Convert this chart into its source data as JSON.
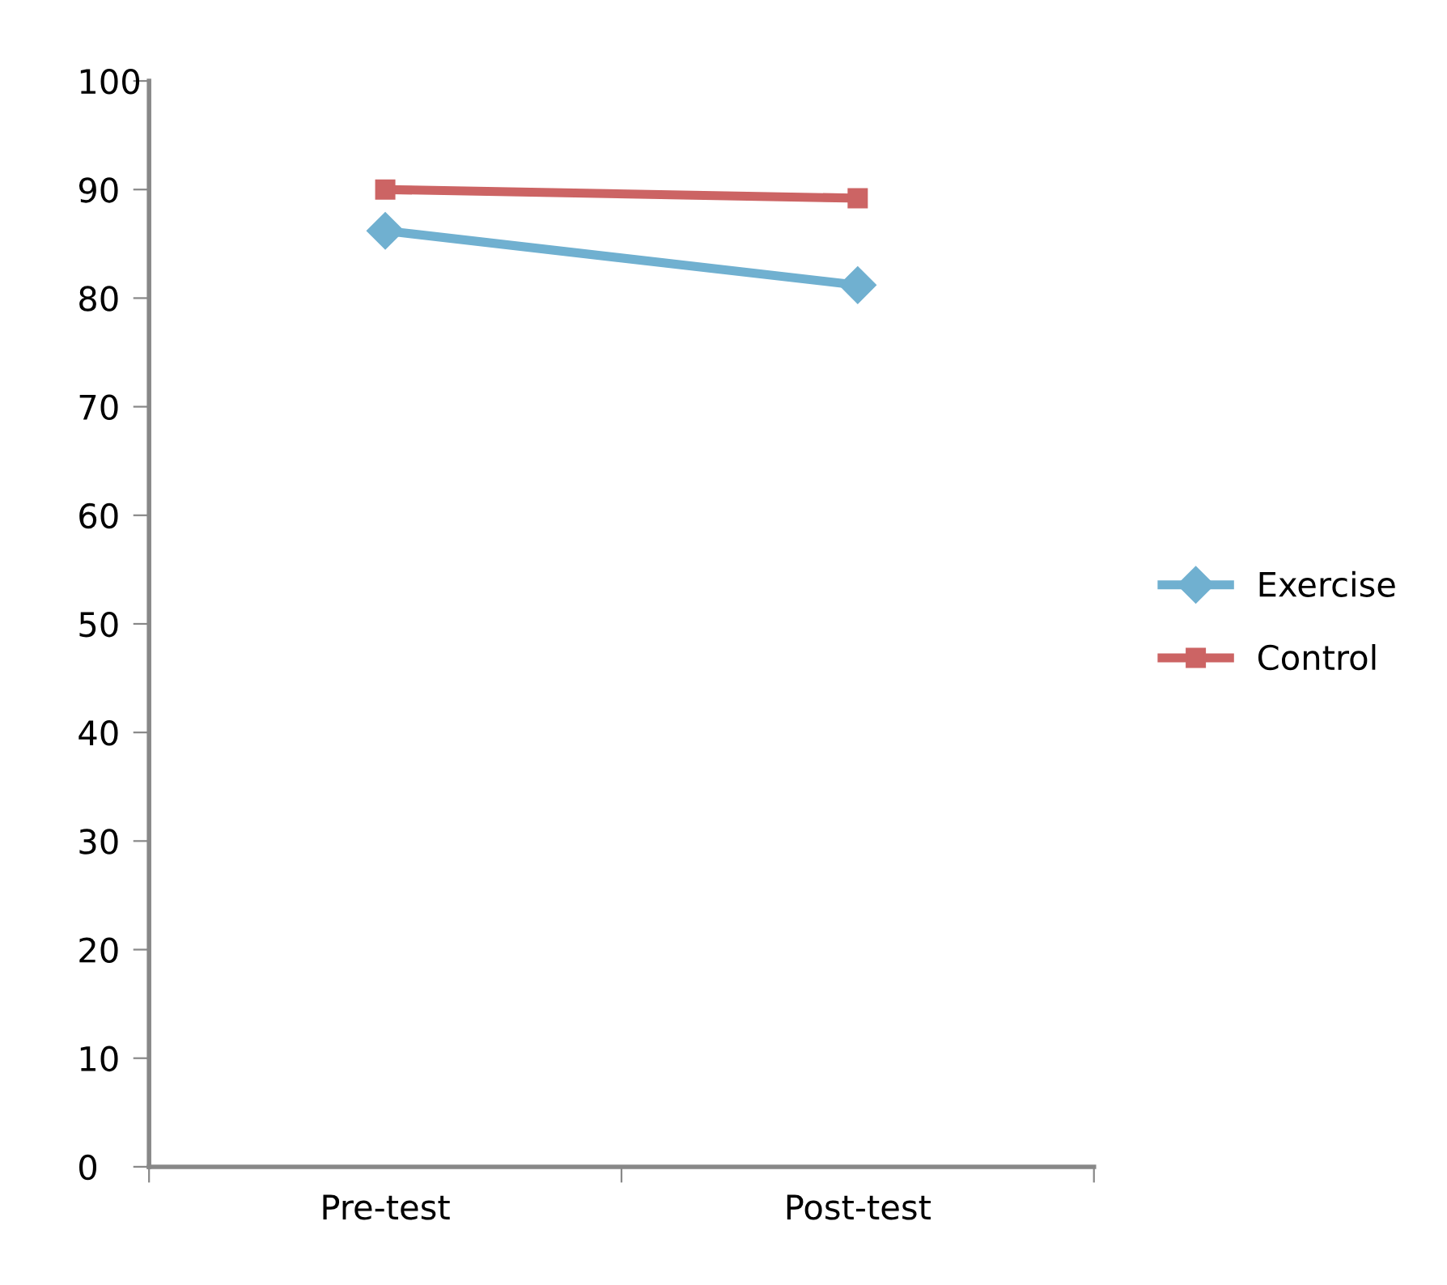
{
  "chart_data": {
    "type": "line",
    "categories": [
      "Pre-test",
      "Post-test"
    ],
    "series": [
      {
        "name": "Exercise",
        "color": "#70b0d0",
        "marker": "diamond",
        "values": [
          86.2,
          81.2
        ]
      },
      {
        "name": "Control",
        "color": "#cc6464",
        "marker": "square",
        "values": [
          90.0,
          89.2
        ]
      }
    ],
    "ylim": [
      0,
      100
    ],
    "yticks": [
      0,
      10,
      20,
      30,
      40,
      50,
      60,
      70,
      80,
      90,
      100
    ],
    "grid": false,
    "legend": "right",
    "line_style": "solid"
  }
}
